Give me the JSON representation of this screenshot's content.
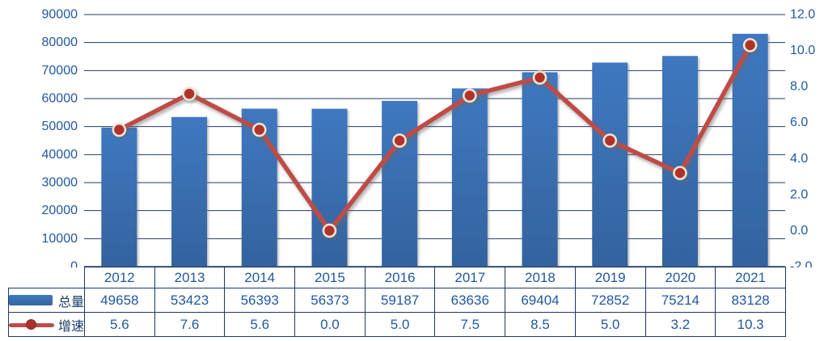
{
  "chart_data": {
    "type": "bar",
    "subtype": "combo-bar-line",
    "categories": [
      "2012",
      "2013",
      "2014",
      "2015",
      "2016",
      "2017",
      "2018",
      "2019",
      "2020",
      "2021"
    ],
    "series": [
      {
        "name": "总量",
        "type": "bar",
        "axis": "left",
        "values": [
          49658,
          53423,
          56393,
          56373,
          59187,
          63636,
          69404,
          72852,
          75214,
          83128
        ]
      },
      {
        "name": "增速",
        "type": "line",
        "axis": "right",
        "values": [
          5.6,
          7.6,
          5.6,
          0.0,
          5.0,
          7.5,
          8.5,
          5.0,
          3.2,
          10.3
        ]
      }
    ],
    "title": "",
    "xlabel": "",
    "ylabel": "",
    "left_axis": {
      "min": 0,
      "max": 90000,
      "step": 10000,
      "decimals": 0
    },
    "right_axis": {
      "min": -2,
      "max": 12,
      "step": 2,
      "decimals": 1
    },
    "grid": "horizontal",
    "legend_position": "table-left-column"
  },
  "table": {
    "header_blank": "",
    "rows": [
      {
        "legend": "总量",
        "swatch": "bar",
        "display": [
          "49658",
          "53423",
          "56393",
          "56373",
          "59187",
          "63636",
          "69404",
          "72852",
          "75214",
          "83128"
        ]
      },
      {
        "legend": "增速",
        "swatch": "line-marker",
        "display": [
          "5.6",
          "7.6",
          "5.6",
          "0.0",
          "5.0",
          "7.5",
          "8.5",
          "5.0",
          "3.2",
          "10.3"
        ]
      }
    ]
  },
  "colors": {
    "bar_top": "#3f78c0",
    "bar_bottom": "#33639e",
    "line": "#bf4b47",
    "marker_fill": "#b2302a",
    "marker_ring": "#ece5d6",
    "gridline": "#1f3864",
    "axis_text": "#2158a0",
    "table_border": "#1f3864",
    "table_text": "#2158a0",
    "legend_text": "#1b3a66"
  }
}
